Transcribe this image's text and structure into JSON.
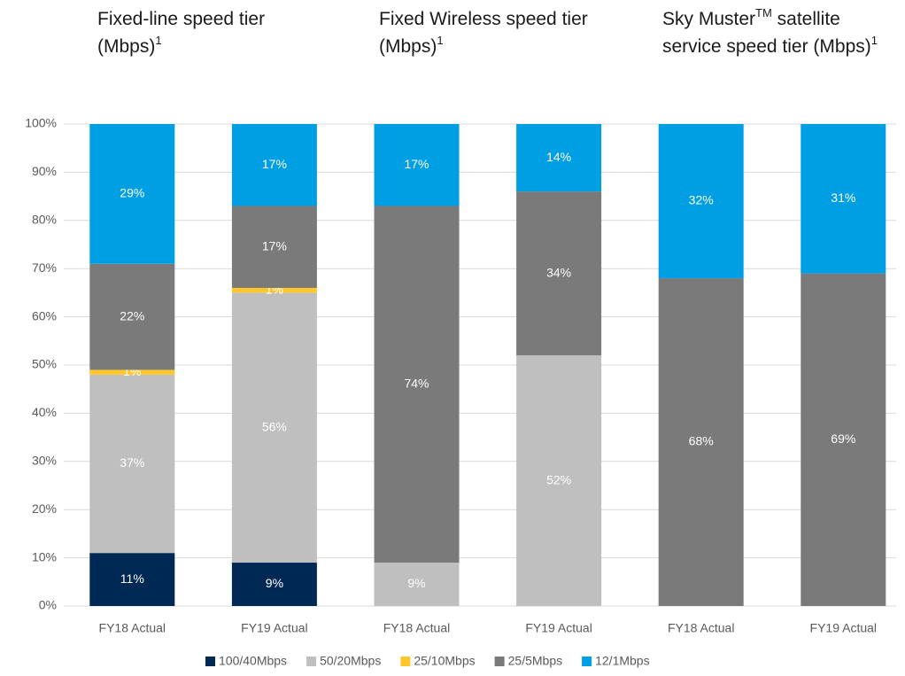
{
  "chart_data": {
    "type": "stacked-bar",
    "groups": [
      {
        "title": [
          "Fixed-line speed tier (Mbps)",
          "1"
        ]
      },
      {
        "title": [
          "Fixed Wireless speed tier (Mbps)",
          "1"
        ]
      },
      {
        "title": [
          "Sky Muster",
          "TM",
          " satellite service speed tier (Mbps)",
          "1"
        ]
      }
    ],
    "categories": [
      "FY18 Actual",
      "FY19 Actual",
      "FY18 Actual",
      "FY19 Actual",
      "FY18 Actual",
      "FY19 Actual"
    ],
    "series": [
      {
        "name": "100/40Mbps",
        "color": "#002855",
        "values": [
          11,
          9,
          null,
          null,
          null,
          null
        ],
        "value_labels": [
          "11%",
          "9%",
          null,
          null,
          null,
          null
        ]
      },
      {
        "name": "50/20Mbps",
        "color": "#bfbfbf",
        "values": [
          37,
          56,
          9,
          52,
          null,
          null
        ],
        "value_labels": [
          "37%",
          "56%",
          "9%",
          "52%",
          null,
          null
        ]
      },
      {
        "name": "25/10Mbps",
        "color": "#ffc72c",
        "values": [
          1,
          1,
          null,
          null,
          null,
          null
        ],
        "value_labels": [
          "1%",
          "1%",
          null,
          null,
          null,
          null
        ]
      },
      {
        "name": "25/5Mbps",
        "color": "#7a7a7a",
        "values": [
          22,
          17,
          74,
          34,
          68,
          69
        ],
        "value_labels": [
          "22%",
          "17%",
          "74%",
          "34%",
          "68%",
          "69%"
        ]
      },
      {
        "name": "12/1Mbps",
        "color": "#009fe3",
        "values": [
          29,
          17,
          17,
          14,
          32,
          31
        ],
        "value_labels": [
          "29%",
          "17%",
          "17%",
          "14%",
          "32%",
          "31%"
        ]
      }
    ],
    "ylim": [
      0,
      100
    ],
    "yticks": [
      {
        "value": 0,
        "label": "0%"
      },
      {
        "value": 10,
        "label": "10%"
      },
      {
        "value": 20,
        "label": "20%"
      },
      {
        "value": 30,
        "label": "30%"
      },
      {
        "value": 40,
        "label": "40%"
      },
      {
        "value": 50,
        "label": "50%"
      },
      {
        "value": 60,
        "label": "60%"
      },
      {
        "value": 70,
        "label": "70%"
      },
      {
        "value": 80,
        "label": "80%"
      },
      {
        "value": 90,
        "label": "90%"
      },
      {
        "value": 100,
        "label": "100%"
      }
    ],
    "grid": true,
    "legend": "bottom"
  }
}
